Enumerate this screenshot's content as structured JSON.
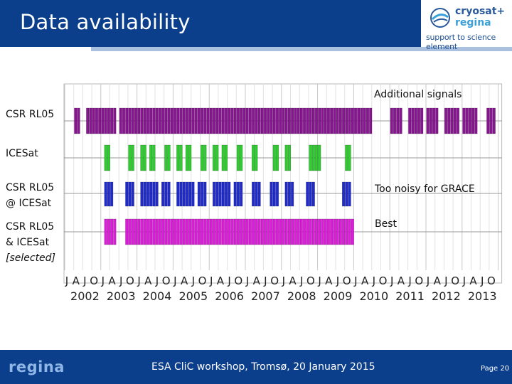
{
  "header": {
    "title": "Data availability",
    "logo": {
      "name": "cryosat+",
      "sub": "regina",
      "tagline": "support to science element"
    }
  },
  "colors": {
    "header_bg": "#0b3f8c",
    "csr": "#8a1494",
    "icesat": "#2bd12b",
    "csr_at_icesat": "#1f2bd0",
    "selected": "#e21ae0"
  },
  "rows": {
    "csr": "CSR RL05",
    "icesat": "ICESat",
    "csr_at_icesat_l1": "CSR RL05",
    "csr_at_icesat_l2": "@ ICESat",
    "selected_l1": "CSR RL05",
    "selected_l2": "& ICESat",
    "selected_l3": "[selected]"
  },
  "chart_data": {
    "type": "timeline",
    "time_axis": {
      "start": "2002-01",
      "end": "2013-12",
      "month_ticks": [
        "J",
        "A",
        "J",
        "O"
      ],
      "years": [
        "2002",
        "2003",
        "2004",
        "2005",
        "2006",
        "2007",
        "2008",
        "2009",
        "2010",
        "2011",
        "2012",
        "2013"
      ]
    },
    "grid": true,
    "annotations": {
      "additional": "Additional signals",
      "noisy": "Too noisy for GRACE",
      "best": "Best"
    },
    "series": [
      {
        "name": "CSR RL05",
        "color": "#8a1494",
        "periods": [
          [
            "2002-04",
            "2002-05"
          ],
          [
            "2002-08",
            "2003-05"
          ],
          [
            "2003-07",
            "2004-12"
          ],
          [
            "2005-01",
            "2009-06"
          ],
          [
            "2009-07",
            "2010-06"
          ],
          [
            "2011-01",
            "2011-04"
          ],
          [
            "2011-07",
            "2011-11"
          ],
          [
            "2012-01",
            "2012-04"
          ],
          [
            "2012-07",
            "2012-11"
          ],
          [
            "2013-01",
            "2013-05"
          ],
          [
            "2013-09",
            "2013-11"
          ]
        ]
      },
      {
        "name": "ICESat",
        "color": "#2bd12b",
        "periods": [
          [
            "2003-02",
            "2003-03"
          ],
          [
            "2003-10",
            "2003-11"
          ],
          [
            "2004-02",
            "2004-03"
          ],
          [
            "2004-05",
            "2004-06"
          ],
          [
            "2004-10",
            "2004-11"
          ],
          [
            "2005-02",
            "2005-03"
          ],
          [
            "2005-05",
            "2005-06"
          ],
          [
            "2005-10",
            "2005-11"
          ],
          [
            "2006-02",
            "2006-03"
          ],
          [
            "2006-05",
            "2006-06"
          ],
          [
            "2006-10",
            "2006-11"
          ],
          [
            "2007-03",
            "2007-04"
          ],
          [
            "2007-10",
            "2007-11"
          ],
          [
            "2008-02",
            "2008-03"
          ],
          [
            "2008-10",
            "2008-11"
          ],
          [
            "2008-12",
            "2009-01"
          ],
          [
            "2009-10",
            "2009-11"
          ]
        ]
      },
      {
        "name": "CSR RL05 @ ICESat",
        "color": "#1f2bd0",
        "periods": [
          [
            "2003-02",
            "2003-04"
          ],
          [
            "2003-09",
            "2003-11"
          ],
          [
            "2004-02",
            "2004-04"
          ],
          [
            "2004-05",
            "2004-07"
          ],
          [
            "2004-09",
            "2004-11"
          ],
          [
            "2005-02",
            "2005-04"
          ],
          [
            "2005-05",
            "2005-07"
          ],
          [
            "2005-09",
            "2005-11"
          ],
          [
            "2006-02",
            "2006-04"
          ],
          [
            "2006-05",
            "2006-07"
          ],
          [
            "2006-09",
            "2006-11"
          ],
          [
            "2007-03",
            "2007-05"
          ],
          [
            "2007-09",
            "2007-11"
          ],
          [
            "2008-02",
            "2008-04"
          ],
          [
            "2008-09",
            "2008-11"
          ],
          [
            "2009-09",
            "2009-11"
          ]
        ]
      },
      {
        "name": "CSR RL05 & ICESat [selected]",
        "color": "#e21ae0",
        "periods": [
          [
            "2003-02",
            "2003-05"
          ],
          [
            "2003-09",
            "2004-12"
          ],
          [
            "2005-01",
            "2009-12"
          ]
        ]
      }
    ]
  },
  "footer": {
    "logo": "regina",
    "text": "ESA CliC workshop, Tromsø, 20 January 2015",
    "page": "Page 20"
  }
}
